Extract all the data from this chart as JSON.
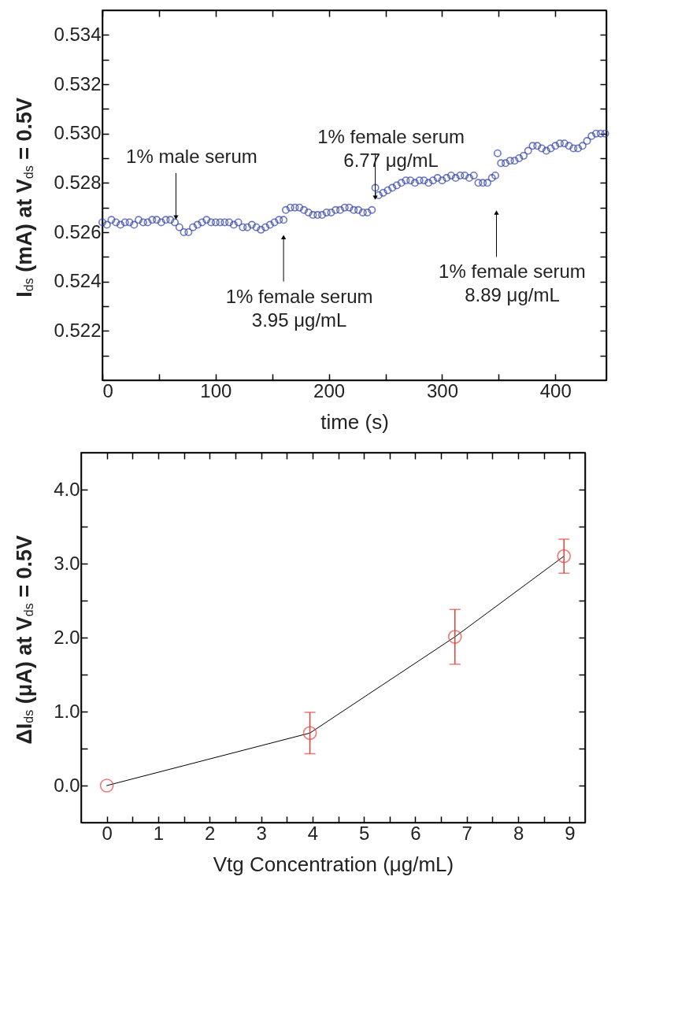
{
  "chart_data": [
    {
      "type": "scatter",
      "xlabel": "time (s)",
      "ylabel": "I$_{ds}$ (mA) at V$_{ds}$ = 0.5V",
      "xlim": [
        0,
        445
      ],
      "ylim": [
        0.52,
        0.535
      ],
      "xticks": [
        0,
        {
          "value": 50,
          "label": null
        },
        100,
        {
          "value": 150,
          "label": null
        },
        200,
        {
          "value": 250,
          "label": null
        },
        300,
        {
          "value": 350,
          "label": null
        },
        400
      ],
      "yticks": [
        {
          "value": 0.521,
          "label": null
        },
        0.522,
        {
          "value": 0.523,
          "label": null
        },
        0.524,
        {
          "value": 0.525,
          "label": null
        },
        0.526,
        {
          "value": 0.527,
          "label": null
        },
        0.528,
        {
          "value": 0.529,
          "label": null
        },
        {
          "value": 0.53,
          "label": "0.530"
        },
        {
          "value": 0.531,
          "label": null
        },
        0.532,
        {
          "value": 0.533,
          "label": null
        },
        0.534
      ],
      "grid": false,
      "marker": "circle",
      "color": "#2f3fa8",
      "x": [
        0,
        4,
        8,
        12,
        16,
        20,
        24,
        28,
        32,
        36,
        40,
        44,
        48,
        52,
        56,
        60,
        64,
        68,
        72,
        76,
        80,
        84,
        88,
        92,
        96,
        100,
        104,
        108,
        112,
        116,
        120,
        124,
        128,
        132,
        136,
        140,
        144,
        148,
        152,
        156,
        160,
        162,
        166,
        170,
        174,
        178,
        182,
        186,
        190,
        194,
        198,
        202,
        206,
        210,
        214,
        218,
        222,
        226,
        230,
        234,
        238,
        241,
        244,
        248,
        252,
        256,
        260,
        264,
        268,
        272,
        276,
        280,
        284,
        288,
        292,
        296,
        300,
        304,
        308,
        312,
        316,
        320,
        324,
        328,
        332,
        336,
        340,
        344,
        347,
        349,
        352,
        356,
        360,
        364,
        368,
        372,
        376,
        380,
        384,
        388,
        392,
        396,
        400,
        404,
        408,
        412,
        416,
        420,
        424,
        428,
        432,
        436,
        440,
        444
      ],
      "values": [
        0.5264,
        0.5263,
        0.5265,
        0.5264,
        0.5263,
        0.5264,
        0.5264,
        0.5263,
        0.5265,
        0.5264,
        0.5264,
        0.5265,
        0.5265,
        0.5264,
        0.5265,
        0.5265,
        0.5264,
        0.5262,
        0.526,
        0.526,
        0.5262,
        0.5263,
        0.5264,
        0.5265,
        0.5264,
        0.5264,
        0.5264,
        0.5264,
        0.5264,
        0.5263,
        0.5264,
        0.5262,
        0.5262,
        0.5263,
        0.5262,
        0.5261,
        0.5262,
        0.5263,
        0.5264,
        0.5265,
        0.5265,
        0.5269,
        0.527,
        0.527,
        0.527,
        0.5269,
        0.5268,
        0.5267,
        0.5267,
        0.5267,
        0.5268,
        0.5268,
        0.5269,
        0.5269,
        0.527,
        0.527,
        0.5269,
        0.5269,
        0.5268,
        0.5268,
        0.5269,
        0.5278,
        0.5275,
        0.5276,
        0.5277,
        0.5278,
        0.5279,
        0.528,
        0.5281,
        0.5281,
        0.528,
        0.5281,
        0.5281,
        0.528,
        0.5281,
        0.5282,
        0.5281,
        0.5282,
        0.5283,
        0.5282,
        0.5283,
        0.5283,
        0.5282,
        0.5283,
        0.528,
        0.528,
        0.528,
        0.5282,
        0.5283,
        0.5292,
        0.5288,
        0.5288,
        0.5289,
        0.5289,
        0.529,
        0.5291,
        0.5293,
        0.5295,
        0.5295,
        0.5294,
        0.5293,
        0.5294,
        0.5295,
        0.5296,
        0.5296,
        0.5295,
        0.5294,
        0.5294,
        0.5295,
        0.5297,
        0.5299,
        0.53,
        0.53,
        0.53
      ],
      "annotations": [
        {
          "text": "1% male serum",
          "x": 65,
          "y": 0.5266
        },
        {
          "text": "1% female serum\n3.95 μg/mL",
          "x": 160,
          "y": 0.5258
        },
        {
          "text": "1% female serum\n6.77 μg/mL",
          "x": 241,
          "y": 0.5274
        },
        {
          "text": "1% female serum\n8.89 μg/mL",
          "x": 348,
          "y": 0.5268
        }
      ]
    },
    {
      "type": "line",
      "xlabel": "Vtg Concentration (μg/mL)",
      "ylabel": "ΔI$_{ds}$ (μA) at V$_{ds}$ = 0.5V",
      "xlim": [
        -0.5,
        9.3
      ],
      "ylim": [
        -0.5,
        4.5
      ],
      "xticks": [
        0,
        {
          "value": 0.5,
          "label": null
        },
        1,
        {
          "value": 1.5,
          "label": null
        },
        2,
        {
          "value": 2.5,
          "label": null
        },
        3,
        {
          "value": 3.5,
          "label": null
        },
        4,
        {
          "value": 4.5,
          "label": null
        },
        5,
        {
          "value": 5.5,
          "label": null
        },
        6,
        {
          "value": 6.5,
          "label": null
        },
        7,
        {
          "value": 7.5,
          "label": null
        },
        8,
        {
          "value": 8.5,
          "label": null
        },
        9
      ],
      "yticks": [
        {
          "value": 0,
          "label": "0.0"
        },
        {
          "value": 0.5,
          "label": null
        },
        {
          "value": 1,
          "label": "1.0"
        },
        {
          "value": 1.5,
          "label": null
        },
        {
          "value": 2,
          "label": "2.0"
        },
        {
          "value": 2.5,
          "label": null
        },
        {
          "value": 3,
          "label": "3.0"
        },
        {
          "value": 3.5,
          "label": null
        },
        {
          "value": 4,
          "label": "4.0"
        }
      ],
      "grid": false,
      "x": [
        0,
        3.95,
        6.77,
        8.89
      ],
      "series": [
        {
          "type": "line",
          "color": "#000000",
          "values": [
            0,
            0.71,
            2.01,
            3.1
          ]
        },
        {
          "type": "scatter",
          "color": "#e8403a",
          "values": [
            0,
            0.71,
            2.01,
            3.1
          ],
          "errors": [
            null,
            0.28,
            0.37,
            0.23
          ]
        }
      ]
    }
  ]
}
